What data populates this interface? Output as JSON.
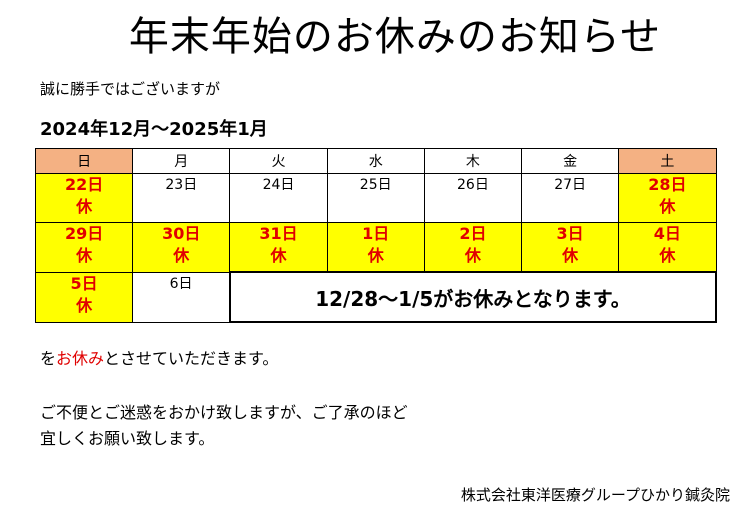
{
  "title": "年末年始のお休みのお知らせ",
  "intro": "誠に勝手ではございますが",
  "period": "2024年12月～2025年1月",
  "calendar": {
    "weekdays": [
      "日",
      "月",
      "火",
      "水",
      "木",
      "金",
      "土"
    ],
    "rows": [
      [
        {
          "date": "22日",
          "status": "休"
        },
        {
          "date": "23日"
        },
        {
          "date": "24日"
        },
        {
          "date": "25日"
        },
        {
          "date": "26日"
        },
        {
          "date": "27日"
        },
        {
          "date": "28日",
          "status": "休"
        }
      ],
      [
        {
          "date": "29日",
          "status": "休"
        },
        {
          "date": "30日",
          "status": "休"
        },
        {
          "date": "31日",
          "status": "休"
        },
        {
          "date": "1日",
          "status": "休"
        },
        {
          "date": "2日",
          "status": "休"
        },
        {
          "date": "3日",
          "status": "休"
        },
        {
          "date": "4日",
          "status": "休"
        }
      ],
      [
        {
          "date": "5日",
          "status": "休"
        },
        {
          "date": "6日"
        }
      ]
    ],
    "note": "12/28～1/5がお休みとなります。"
  },
  "closing": {
    "prefix": "を",
    "highlight": "お休み",
    "suffix": "とさせていただきます。"
  },
  "apology": [
    "ご不便とご迷惑をおかけ致しますが、ご了承のほど",
    "宜しくお願い致します。"
  ],
  "signature": "株式会社東洋医療グループひかり鍼灸院"
}
